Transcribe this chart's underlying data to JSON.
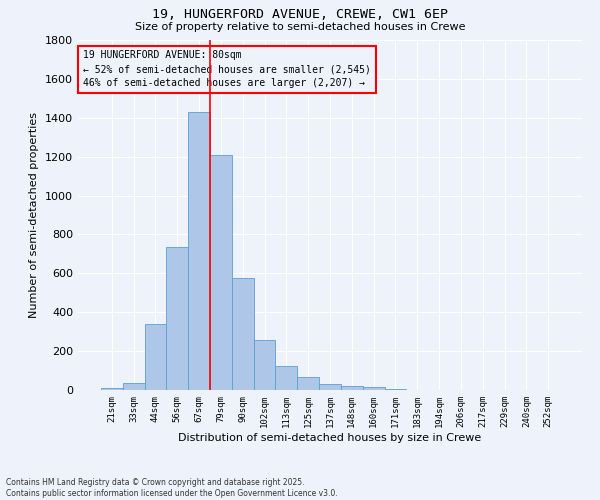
{
  "title_line1": "19, HUNGERFORD AVENUE, CREWE, CW1 6EP",
  "title_line2": "Size of property relative to semi-detached houses in Crewe",
  "xlabel": "Distribution of semi-detached houses by size in Crewe",
  "ylabel": "Number of semi-detached properties",
  "categories": [
    "21sqm",
    "33sqm",
    "44sqm",
    "56sqm",
    "67sqm",
    "79sqm",
    "90sqm",
    "102sqm",
    "113sqm",
    "125sqm",
    "137sqm",
    "148sqm",
    "160sqm",
    "171sqm",
    "183sqm",
    "194sqm",
    "206sqm",
    "217sqm",
    "229sqm",
    "240sqm",
    "252sqm"
  ],
  "values": [
    10,
    38,
    340,
    735,
    1430,
    1210,
    575,
    255,
    125,
    68,
    30,
    20,
    15,
    5,
    0,
    0,
    0,
    0,
    0,
    0,
    0
  ],
  "bar_color": "#aec6e8",
  "bar_edge_color": "#5a9fd4",
  "vline_color": "red",
  "vline_x_index": 4.5,
  "annotation_title": "19 HUNGERFORD AVENUE: 80sqm",
  "annotation_line2": "← 52% of semi-detached houses are smaller (2,545)",
  "annotation_line3": "46% of semi-detached houses are larger (2,207) →",
  "annotation_box_color": "red",
  "ylim": [
    0,
    1800
  ],
  "yticks": [
    0,
    200,
    400,
    600,
    800,
    1000,
    1200,
    1400,
    1600,
    1800
  ],
  "bg_color": "#eef2fb",
  "grid_color": "#ffffff",
  "footer_line1": "Contains HM Land Registry data © Crown copyright and database right 2025.",
  "footer_line2": "Contains public sector information licensed under the Open Government Licence v3.0."
}
